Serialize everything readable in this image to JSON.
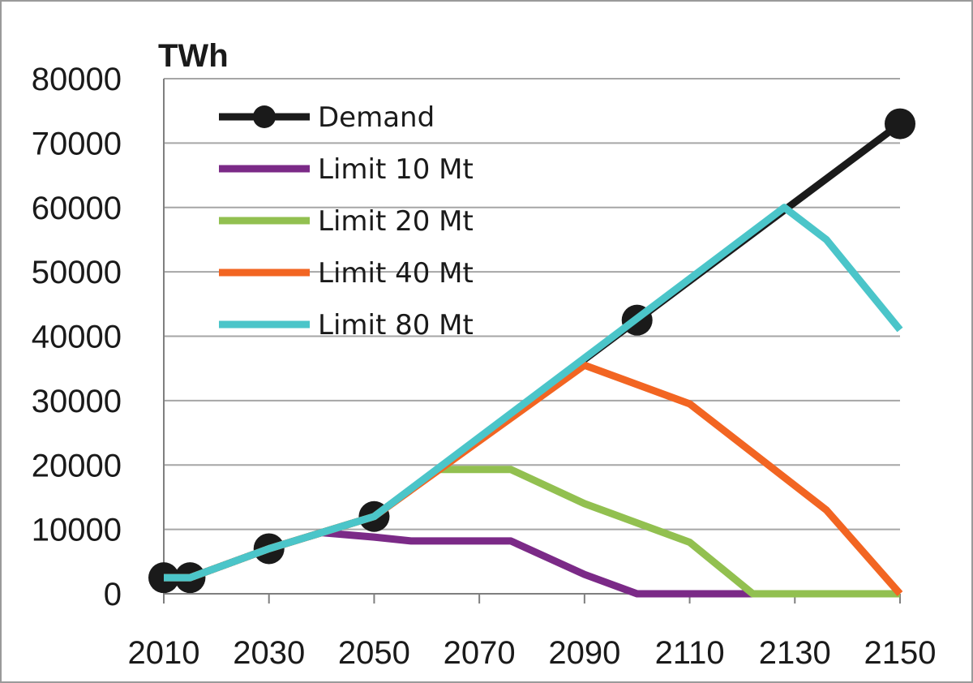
{
  "chart_data": {
    "type": "line",
    "title": "",
    "ylabel": "TWh",
    "xlabel": "",
    "xlim": [
      2010,
      2150
    ],
    "ylim": [
      0,
      80000
    ],
    "x_ticks": [
      "2010",
      "2030",
      "2050",
      "2070",
      "2090",
      "2110",
      "2130",
      "2150"
    ],
    "y_ticks": [
      "0",
      "10000",
      "20000",
      "30000",
      "40000",
      "50000",
      "60000",
      "70000",
      "80000"
    ],
    "grid": "horizontal",
    "legend_position": "top-left",
    "series": [
      {
        "name": "Demand",
        "color": "#1a1a1a",
        "marker": "circle",
        "x": [
          2010,
          2015,
          2030,
          2050,
          2100,
          2150
        ],
        "y": [
          2500,
          2500,
          7000,
          12000,
          42500,
          73000
        ]
      },
      {
        "name": "Limit 10 Mt",
        "color": "#7b2a87",
        "x": [
          2010,
          2015,
          2030,
          2040,
          2050,
          2057,
          2066,
          2076,
          2090,
          2100,
          2122
        ],
        "y": [
          2500,
          2500,
          7000,
          9500,
          8800,
          8200,
          8200,
          8200,
          3000,
          0,
          0
        ]
      },
      {
        "name": "Limit 20 Mt",
        "color": "#92c050",
        "x": [
          2010,
          2015,
          2030,
          2050,
          2062,
          2076,
          2090,
          2110,
          2122,
          2150
        ],
        "y": [
          2500,
          2500,
          7000,
          12000,
          19300,
          19300,
          14000,
          8000,
          0,
          0
        ]
      },
      {
        "name": "Limit 40 Mt",
        "color": "#f26522",
        "x": [
          2010,
          2015,
          2030,
          2050,
          2090,
          2110,
          2136,
          2150
        ],
        "y": [
          2500,
          2500,
          7000,
          12000,
          35500,
          29500,
          13000,
          0
        ]
      },
      {
        "name": "Limit 80 Mt",
        "color": "#4bc5c9",
        "x": [
          2010,
          2015,
          2030,
          2050,
          2128,
          2136,
          2150
        ],
        "y": [
          2500,
          2500,
          7000,
          12000,
          60000,
          55000,
          41000
        ]
      }
    ]
  }
}
